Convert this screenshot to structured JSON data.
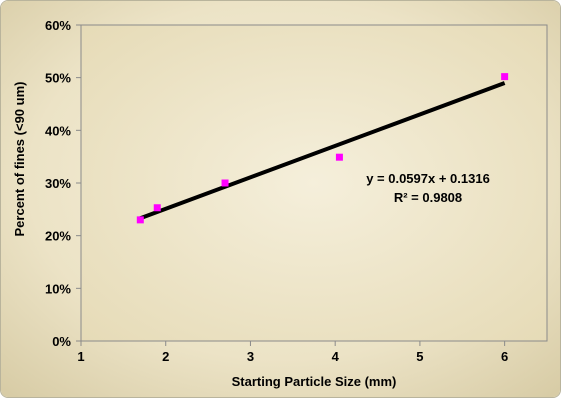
{
  "chart_data": {
    "type": "scatter",
    "xlabel": "Starting Particle Size (mm)",
    "ylabel": "Percent of fines (<90 um)",
    "xlim": [
      1,
      6.5
    ],
    "ylim": [
      0,
      0.6
    ],
    "x_ticks": [
      "1",
      "2",
      "3",
      "4",
      "5",
      "6"
    ],
    "y_ticks": [
      "0%",
      "10%",
      "20%",
      "30%",
      "40%",
      "50%",
      "60%"
    ],
    "grid": false,
    "legend": "none",
    "series": [
      {
        "points": [
          {
            "x": 1.7,
            "y": 0.23
          },
          {
            "x": 1.9,
            "y": 0.253
          },
          {
            "x": 2.7,
            "y": 0.3
          },
          {
            "x": 4.05,
            "y": 0.349
          },
          {
            "x": 6.0,
            "y": 0.502
          }
        ],
        "color": "#ff00ff",
        "marker": "square"
      }
    ],
    "trendline": {
      "type": "linear",
      "slope": 0.0597,
      "intercept": 0.1316,
      "x_range": [
        1.7,
        6.0
      ],
      "color": "#000000",
      "equation": "y = 0.0597x + 0.1316",
      "r_squared": "R² = 0.9808"
    },
    "colors": {
      "background_outer": "#d9cfae",
      "background_inner": "#f3ecd6",
      "plot_area": "#ece3c4"
    }
  }
}
